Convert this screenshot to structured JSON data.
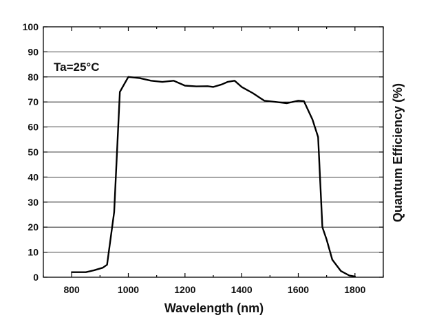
{
  "chart_data": {
    "type": "line",
    "title": "",
    "xlabel": "Wavelength (nm)",
    "ylabel": "Quantum Efficiency (%)",
    "annotation": "Ta=25°C",
    "xlim": [
      700,
      1900
    ],
    "ylim": [
      0,
      100
    ],
    "x_ticks": [
      "800",
      "1000",
      "1200",
      "1400",
      "1600",
      "1800"
    ],
    "y_ticks": [
      "0",
      "10",
      "20",
      "30",
      "40",
      "50",
      "60",
      "70",
      "80",
      "90",
      "100"
    ],
    "grid": "horizontal",
    "line_color": "#000000",
    "series": [
      {
        "x": [
          800,
          850,
          880,
          910,
          925,
          950,
          970,
          1000,
          1040,
          1080,
          1120,
          1160,
          1200,
          1240,
          1280,
          1300,
          1330,
          1350,
          1375,
          1400,
          1440,
          1480,
          1520,
          1560,
          1600,
          1620,
          1650,
          1670,
          1685,
          1700,
          1720,
          1750,
          1780,
          1800
        ],
        "y": [
          2,
          2,
          2.8,
          3.8,
          5,
          26,
          74,
          80,
          79.5,
          78.5,
          78,
          78.5,
          76.5,
          76.2,
          76.3,
          76,
          77,
          78,
          78.5,
          76,
          73.5,
          70.5,
          70,
          69.5,
          70.5,
          70.3,
          63,
          56,
          20,
          15,
          7,
          2.5,
          0.7,
          0.3
        ]
      }
    ]
  }
}
